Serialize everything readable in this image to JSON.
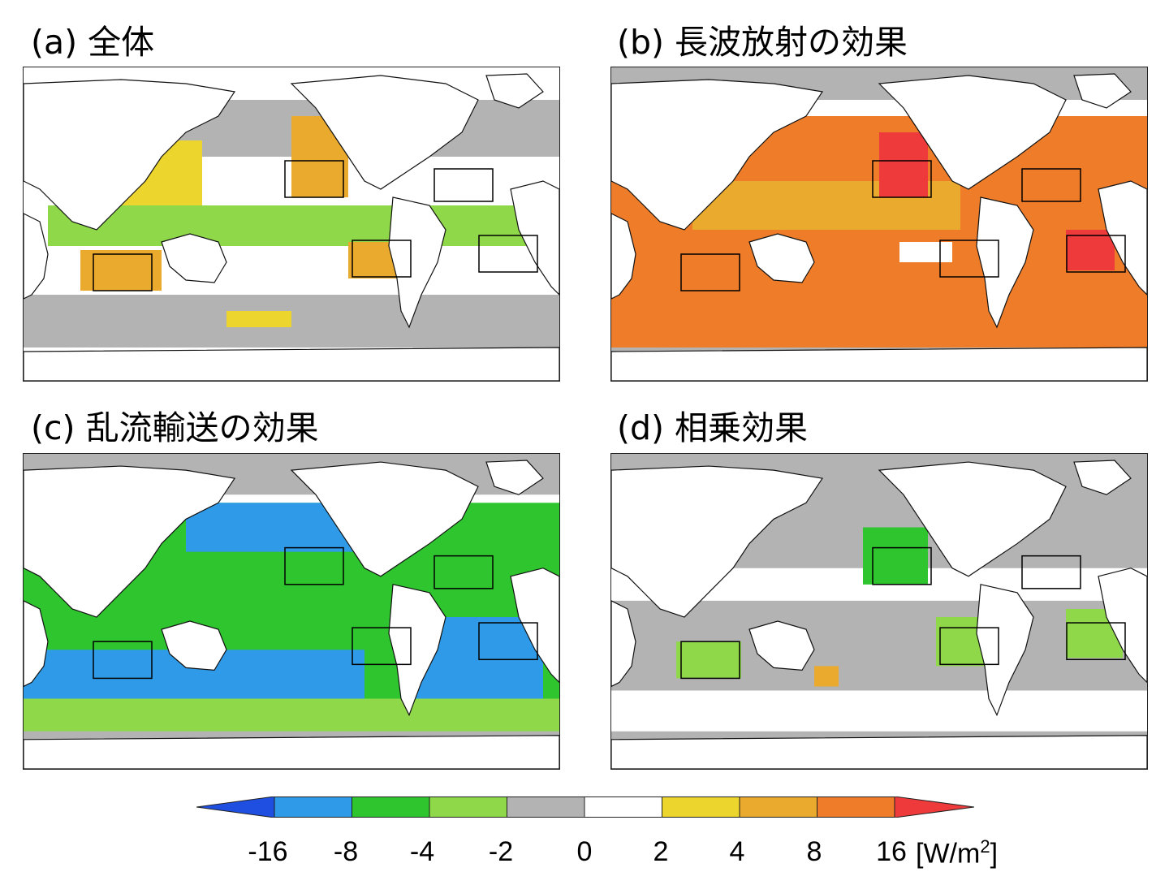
{
  "panels": [
    {
      "id": "a",
      "title": "(a) 全体"
    },
    {
      "id": "b",
      "title": "(b) 長波放射の効果"
    },
    {
      "id": "c",
      "title": "(c) 乱流輸送の効果"
    },
    {
      "id": "d",
      "title": "(d) 相乗効果"
    }
  ],
  "colorbar": {
    "labels": [
      "-16",
      "-8",
      "-4",
      "-2",
      "0",
      "2",
      "4",
      "8",
      "16"
    ],
    "unit_prefix": "[W/m",
    "unit_sup": "2",
    "unit_suffix": "]",
    "colors": {
      "below_min": "#1f4fe0",
      "n16_n8": "#2f9be8",
      "n8_n4": "#2ec52e",
      "n4_n2": "#8fd84a",
      "n2_0": "#b3b3b3",
      "0_2": "#ffffff",
      "2_4": "#ecd52c",
      "4_8": "#eaaa2d",
      "8_16": "#ee7c28",
      "above_max": "#ee3a3a"
    }
  },
  "panel_colors": {
    "a": "#eaaa2d",
    "b": "#ee7c28",
    "c": "#2ec52e",
    "d": "#b3b3b3"
  }
}
